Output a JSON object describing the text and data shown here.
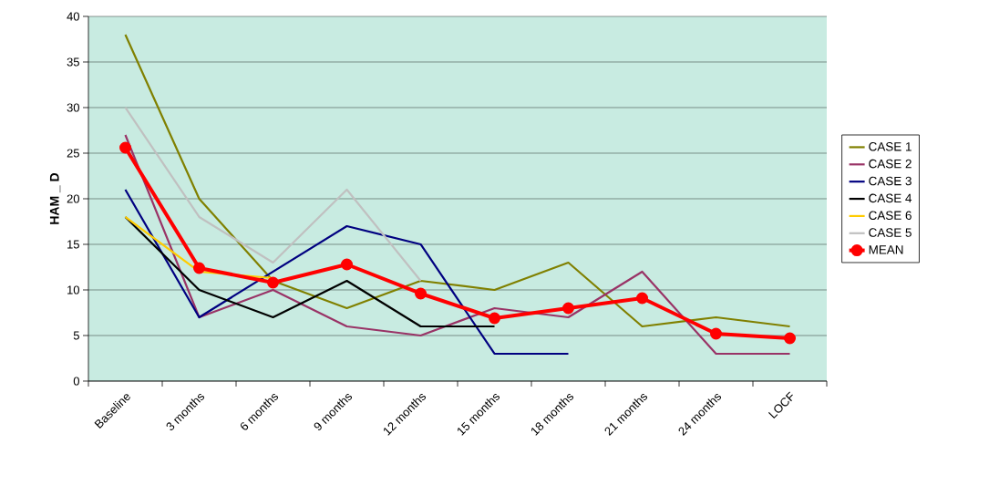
{
  "chart_data": {
    "type": "line",
    "ylabel": "HAM _ D",
    "categories": [
      "Baseline",
      "3 months",
      "6 months",
      "9 months",
      "12 months",
      "15 months",
      "18 months",
      "21 months",
      "24 months",
      "LOCF"
    ],
    "ylim": [
      0,
      40
    ],
    "yticks": [
      0,
      5,
      10,
      15,
      20,
      25,
      30,
      35,
      40
    ],
    "grid": "y",
    "legend": "right",
    "marker": "none",
    "line_style": "solid",
    "series": [
      {
        "name": "CASE 1",
        "color": "#808000",
        "values": [
          38,
          20,
          11,
          8,
          11,
          10,
          13,
          6,
          7,
          6
        ]
      },
      {
        "name": "CASE 2",
        "color": "#993366",
        "values": [
          27,
          7,
          10,
          6,
          5,
          8,
          7,
          12,
          3,
          3
        ]
      },
      {
        "name": "CASE 3",
        "color": "#000080",
        "values": [
          21,
          7,
          12,
          17,
          15,
          3,
          3,
          null,
          null,
          null
        ]
      },
      {
        "name": "CASE 4",
        "color": "#000000",
        "values": [
          18,
          10,
          7,
          11,
          6,
          6,
          null,
          null,
          null,
          null
        ]
      },
      {
        "name": "CASE 6",
        "color": "#ffcc00",
        "values": [
          18,
          12,
          11.3,
          null,
          null,
          null,
          null,
          null,
          null,
          null
        ]
      },
      {
        "name": "CASE 5",
        "color": "#c0c0c0",
        "values": [
          30,
          18,
          13,
          21,
          11,
          null,
          null,
          null,
          null,
          null
        ]
      },
      {
        "name": "MEAN",
        "color": "#ff0000",
        "marker": "circle",
        "values": [
          25.6,
          12.4,
          10.8,
          12.8,
          9.6,
          6.9,
          8,
          9.1,
          5.2,
          4.7
        ]
      }
    ]
  }
}
